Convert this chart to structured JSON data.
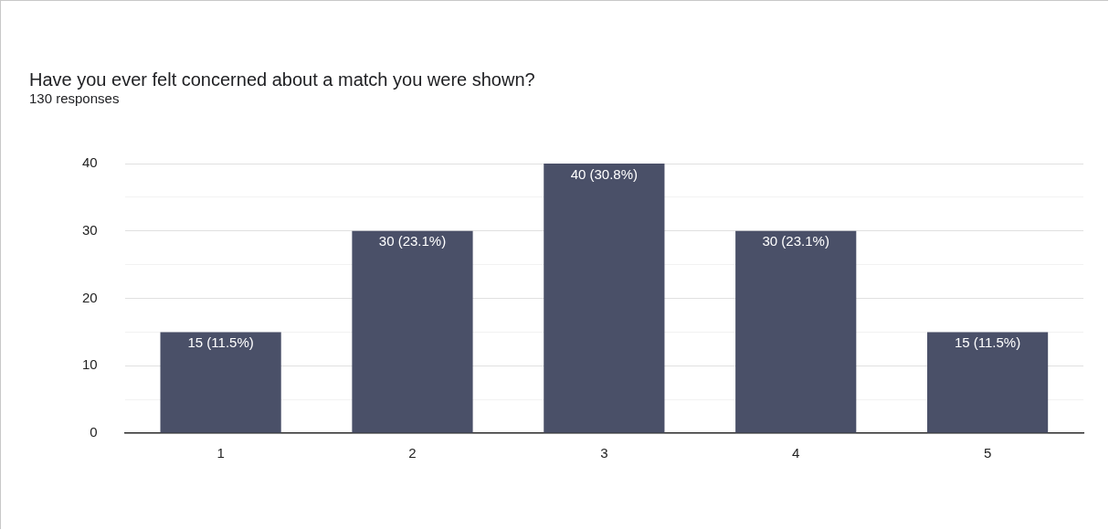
{
  "chart_data": {
    "type": "bar",
    "title": "Have you ever felt concerned about a match you were shown?",
    "subtitle": "130 responses",
    "categories": [
      "1",
      "2",
      "3",
      "4",
      "5"
    ],
    "values": [
      15,
      30,
      40,
      30,
      15
    ],
    "value_labels": [
      "15 (11.5%)",
      "30 (23.1%)",
      "40 (30.8%)",
      "30 (23.1%)",
      "15 (11.5%)"
    ],
    "color": "#4a5068",
    "ylim": [
      0,
      40
    ],
    "yticks": [
      0,
      {
        "value": 5,
        "label": null
      },
      10,
      {
        "value": 15,
        "label": null
      },
      20,
      {
        "value": 25,
        "label": null
      },
      30,
      {
        "value": 35,
        "label": null
      },
      40
    ],
    "grid": "y"
  }
}
